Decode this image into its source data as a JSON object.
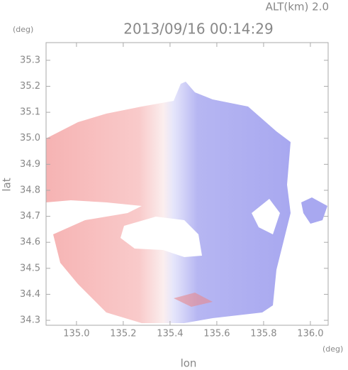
{
  "chart_data": {
    "type": "map",
    "title": "2013/09/16 00:14:29",
    "subtitle": "ALT(km) 2.0",
    "y_unit": "(deg)",
    "x_unit": "(deg)",
    "x_label": "lon",
    "y_label": "lat",
    "xlim": [
      134.87,
      136.076
    ],
    "ylim": [
      34.281,
      35.368
    ],
    "xticks": [
      {
        "value": 135.0,
        "label": "135.0"
      },
      135.2,
      135.4,
      135.6,
      135.8,
      {
        "value": 136.0,
        "label": "136.0"
      }
    ],
    "yticks": [
      34.3,
      34.4,
      34.5,
      34.6,
      34.7,
      34.8,
      34.9,
      {
        "value": 35.0,
        "label": "35.0"
      },
      35.1,
      35.2,
      35.3
    ]
  }
}
